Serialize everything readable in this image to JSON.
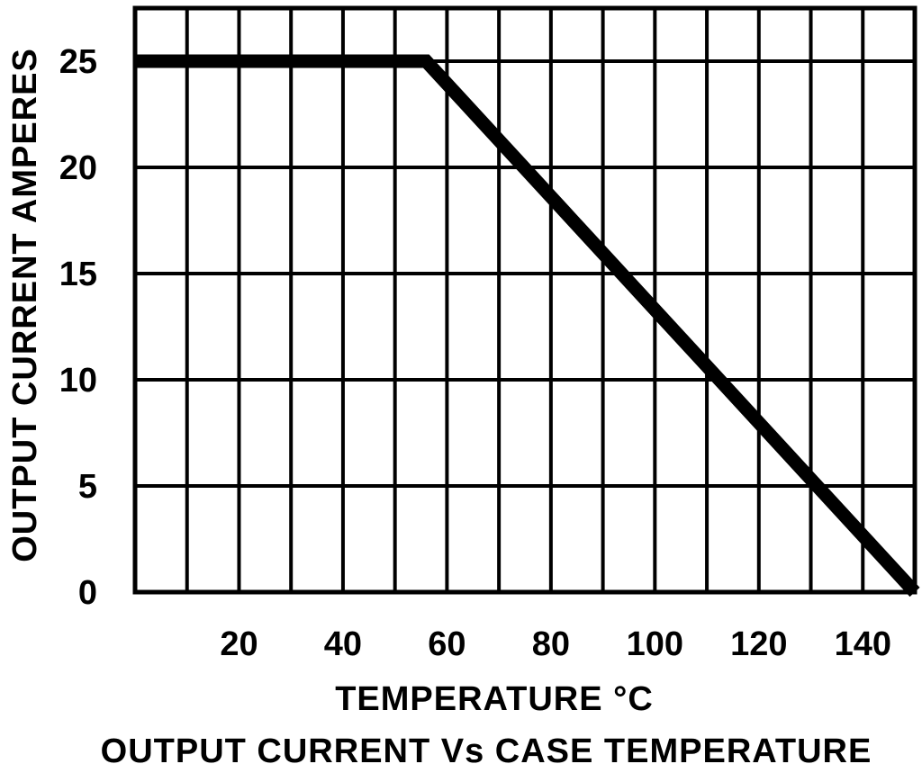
{
  "chart_data": {
    "type": "line",
    "title": "OUTPUT CURRENT Vs CASE TEMPERATURE",
    "xlabel": "TEMPERATURE °C",
    "ylabel": "OUTPUT CURRENT AMPERES",
    "xlim": [
      0,
      150
    ],
    "ylim": [
      0,
      27.5
    ],
    "x_ticks": [
      20,
      40,
      60,
      80,
      100,
      120,
      140
    ],
    "y_ticks": [
      0,
      5,
      10,
      15,
      20,
      25
    ],
    "grid": true,
    "series": [
      {
        "x": [
          0,
          56,
          150
        ],
        "y": [
          25,
          25,
          0
        ]
      }
    ]
  }
}
